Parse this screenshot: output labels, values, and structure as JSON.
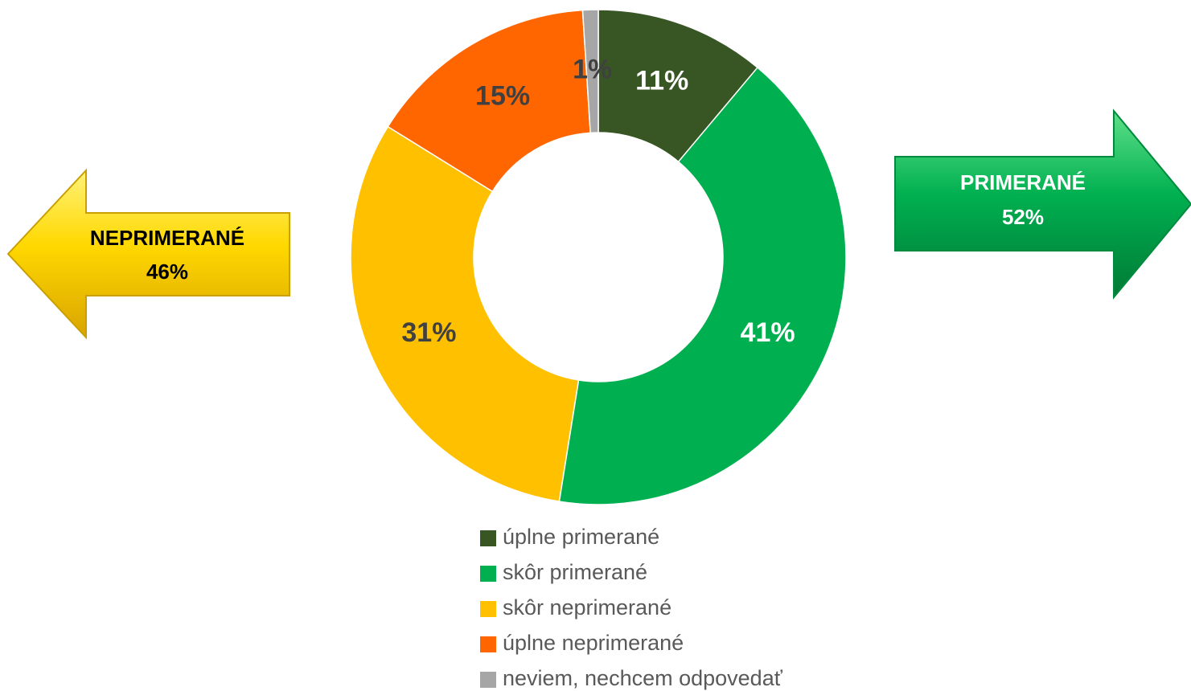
{
  "chart_data": {
    "type": "donut",
    "categories": [
      "úplne primerané",
      "skôr primerané",
      "skôr neprimerané",
      "úplne neprimerané",
      "neviem, nechcem odpovedať"
    ],
    "values": [
      11,
      41,
      31,
      15,
      1
    ],
    "value_labels": [
      "11%",
      "41%",
      "31%",
      "15%",
      "1%"
    ],
    "colors": [
      "#375623",
      "#00b050",
      "#ffc000",
      "#ff6600",
      "#a6a6a6"
    ],
    "label_colors": [
      "#ffffff",
      "#ffffff",
      "#404040",
      "#404040",
      "#404040"
    ],
    "annotations": [
      {
        "text": "NEPRIMERANÉ",
        "label": "46%"
      },
      {
        "text": "PRIMERANÉ",
        "label": "52%"
      }
    ]
  }
}
